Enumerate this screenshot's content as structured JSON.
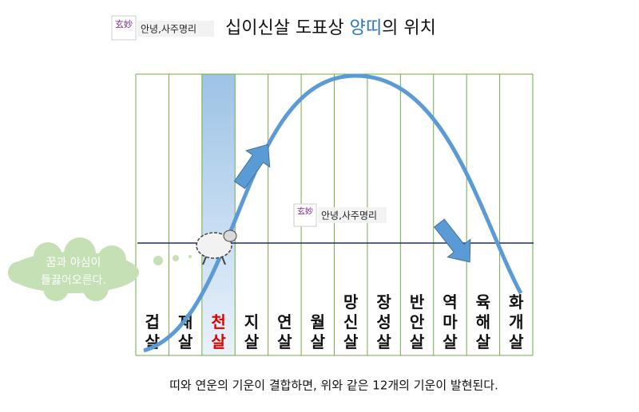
{
  "header": {
    "logo": "玄妙",
    "brand": "안녕,사주명리",
    "title": [
      "십이신살 도표상 ",
      "양띠",
      "의 위치"
    ]
  },
  "columns": [
    {
      "label": "겁살"
    },
    {
      "label": "재살"
    },
    {
      "label": "천살"
    },
    {
      "label": "지살"
    },
    {
      "label": "연살"
    },
    {
      "label": "월살"
    },
    {
      "label": "망신살"
    },
    {
      "label": "장성살"
    },
    {
      "label": "반안살"
    },
    {
      "label": "역마살"
    },
    {
      "label": "육해살"
    },
    {
      "label": "화개살"
    }
  ],
  "cloud": [
    "꿈과 야심이",
    "들끓어오른다."
  ],
  "watermark": {
    "logo": "玄妙",
    "brand": "안녕,사주명리"
  },
  "caption": "띠와 연운의 기운이 결합하면, 위와 같은 12개의 기운이 발현된다."
}
